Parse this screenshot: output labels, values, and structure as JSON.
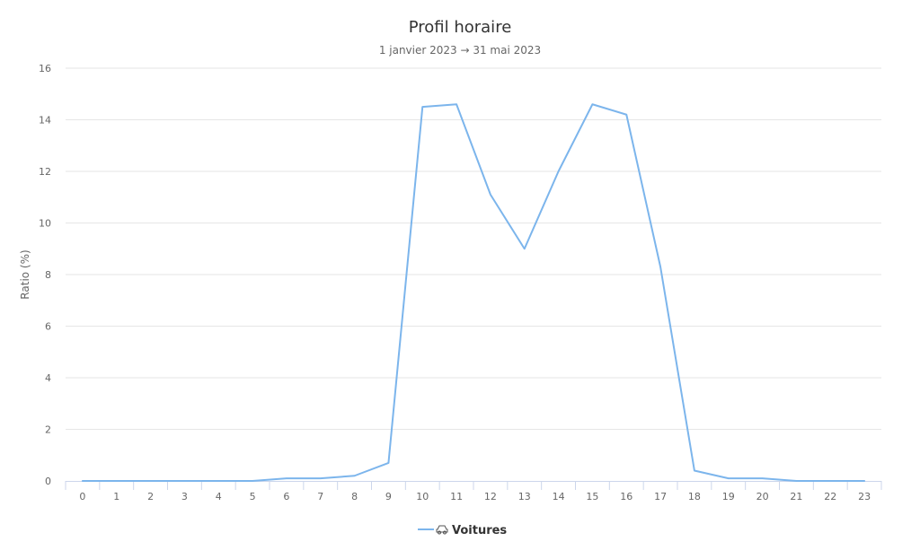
{
  "chart_data": {
    "type": "line",
    "title": "Profil horaire",
    "subtitle": "1 janvier 2023 → 31 mai 2023",
    "xlabel": "",
    "ylabel": "Ratio (%)",
    "ylim": [
      0,
      16
    ],
    "y_ticks": [
      0,
      2,
      4,
      6,
      8,
      10,
      12,
      14,
      16
    ],
    "categories": [
      "0",
      "1",
      "2",
      "3",
      "4",
      "5",
      "6",
      "7",
      "8",
      "9",
      "10",
      "11",
      "12",
      "13",
      "14",
      "15",
      "16",
      "17",
      "18",
      "19",
      "20",
      "21",
      "22",
      "23"
    ],
    "grid": true,
    "legend_position": "bottom",
    "series": [
      {
        "name": "Voitures",
        "color": "#7cb5ec",
        "icon": "car-icon",
        "values": [
          0,
          0,
          0,
          0,
          0,
          0,
          0.1,
          0.1,
          0.2,
          0.7,
          14.5,
          14.6,
          11.1,
          9.0,
          12.0,
          14.6,
          14.2,
          8.3,
          0.4,
          0.1,
          0.1,
          0,
          0,
          0
        ]
      }
    ]
  }
}
